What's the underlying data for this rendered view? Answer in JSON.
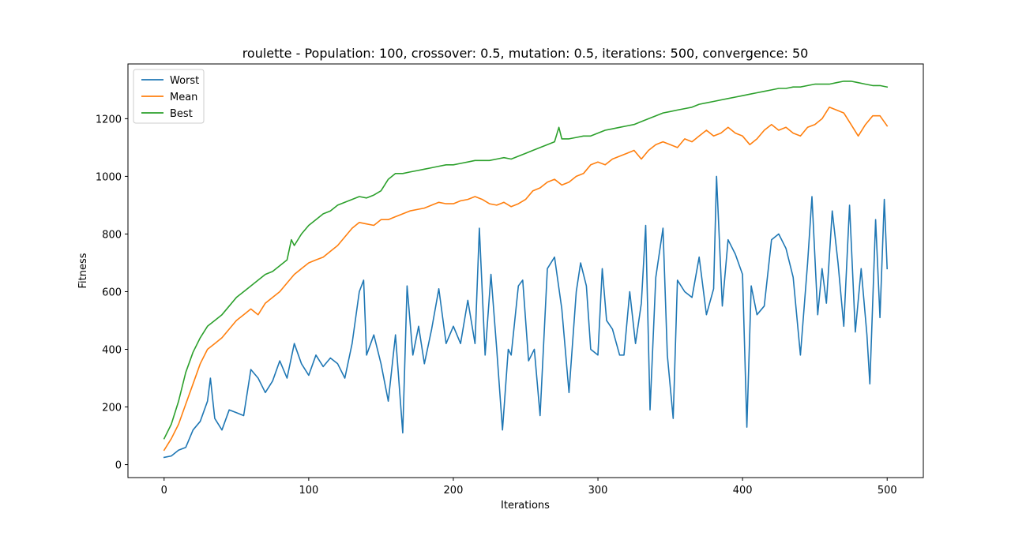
{
  "chart_data": {
    "type": "line",
    "title": "roulette - Population: 100, crossover: 0.5, mutation: 0.5, iterations: 500, convergence: 50",
    "xlabel": "Iterations",
    "ylabel": "Fitness",
    "xlim": [
      -25,
      525
    ],
    "ylim": [
      -45,
      1390
    ],
    "x_ticks": [
      0,
      100,
      200,
      300,
      400,
      500
    ],
    "y_ticks": [
      0,
      200,
      400,
      600,
      800,
      1000,
      1200
    ],
    "x_tick_labels": [
      "0",
      "100",
      "200",
      "300",
      "400",
      "500"
    ],
    "y_tick_labels": [
      "0",
      "200",
      "400",
      "600",
      "800",
      "1000",
      "1200"
    ],
    "grid": false,
    "legend_position": "top-left",
    "series": [
      {
        "name": "Worst",
        "color": "#1f77b4",
        "points": [
          [
            0,
            25
          ],
          [
            5,
            30
          ],
          [
            10,
            50
          ],
          [
            15,
            60
          ],
          [
            20,
            120
          ],
          [
            25,
            150
          ],
          [
            30,
            220
          ],
          [
            32,
            300
          ],
          [
            35,
            160
          ],
          [
            40,
            120
          ],
          [
            45,
            190
          ],
          [
            50,
            180
          ],
          [
            55,
            170
          ],
          [
            60,
            330
          ],
          [
            65,
            300
          ],
          [
            70,
            250
          ],
          [
            75,
            290
          ],
          [
            80,
            360
          ],
          [
            85,
            300
          ],
          [
            90,
            420
          ],
          [
            95,
            350
          ],
          [
            100,
            310
          ],
          [
            105,
            380
          ],
          [
            110,
            340
          ],
          [
            115,
            370
          ],
          [
            120,
            350
          ],
          [
            125,
            300
          ],
          [
            130,
            420
          ],
          [
            135,
            600
          ],
          [
            138,
            640
          ],
          [
            140,
            380
          ],
          [
            145,
            450
          ],
          [
            150,
            350
          ],
          [
            155,
            220
          ],
          [
            160,
            450
          ],
          [
            165,
            110
          ],
          [
            168,
            620
          ],
          [
            172,
            380
          ],
          [
            176,
            480
          ],
          [
            180,
            350
          ],
          [
            185,
            470
          ],
          [
            190,
            610
          ],
          [
            195,
            420
          ],
          [
            200,
            480
          ],
          [
            205,
            420
          ],
          [
            210,
            570
          ],
          [
            215,
            420
          ],
          [
            218,
            820
          ],
          [
            222,
            380
          ],
          [
            226,
            660
          ],
          [
            230,
            400
          ],
          [
            234,
            120
          ],
          [
            238,
            400
          ],
          [
            240,
            380
          ],
          [
            245,
            620
          ],
          [
            248,
            640
          ],
          [
            252,
            360
          ],
          [
            256,
            400
          ],
          [
            260,
            170
          ],
          [
            265,
            680
          ],
          [
            270,
            720
          ],
          [
            275,
            540
          ],
          [
            280,
            250
          ],
          [
            285,
            600
          ],
          [
            288,
            700
          ],
          [
            292,
            620
          ],
          [
            295,
            400
          ],
          [
            300,
            380
          ],
          [
            303,
            680
          ],
          [
            306,
            500
          ],
          [
            310,
            470
          ],
          [
            315,
            380
          ],
          [
            318,
            380
          ],
          [
            322,
            600
          ],
          [
            326,
            420
          ],
          [
            330,
            560
          ],
          [
            333,
            830
          ],
          [
            336,
            190
          ],
          [
            340,
            650
          ],
          [
            345,
            820
          ],
          [
            348,
            380
          ],
          [
            352,
            160
          ],
          [
            355,
            640
          ],
          [
            360,
            600
          ],
          [
            365,
            580
          ],
          [
            370,
            720
          ],
          [
            375,
            520
          ],
          [
            380,
            610
          ],
          [
            382,
            1000
          ],
          [
            386,
            550
          ],
          [
            390,
            780
          ],
          [
            395,
            730
          ],
          [
            400,
            660
          ],
          [
            403,
            130
          ],
          [
            406,
            620
          ],
          [
            410,
            520
          ],
          [
            415,
            550
          ],
          [
            420,
            780
          ],
          [
            425,
            800
          ],
          [
            430,
            750
          ],
          [
            435,
            650
          ],
          [
            440,
            380
          ],
          [
            445,
            700
          ],
          [
            448,
            930
          ],
          [
            452,
            520
          ],
          [
            455,
            680
          ],
          [
            458,
            560
          ],
          [
            462,
            880
          ],
          [
            466,
            700
          ],
          [
            470,
            480
          ],
          [
            474,
            900
          ],
          [
            478,
            460
          ],
          [
            482,
            680
          ],
          [
            486,
            450
          ],
          [
            488,
            280
          ],
          [
            492,
            850
          ],
          [
            495,
            510
          ],
          [
            498,
            920
          ],
          [
            500,
            680
          ]
        ]
      },
      {
        "name": "Mean",
        "color": "#ff7f0e",
        "points": [
          [
            0,
            50
          ],
          [
            5,
            90
          ],
          [
            10,
            140
          ],
          [
            15,
            210
          ],
          [
            20,
            280
          ],
          [
            25,
            350
          ],
          [
            30,
            400
          ],
          [
            35,
            420
          ],
          [
            40,
            440
          ],
          [
            45,
            470
          ],
          [
            50,
            500
          ],
          [
            55,
            520
          ],
          [
            60,
            540
          ],
          [
            65,
            520
          ],
          [
            70,
            560
          ],
          [
            75,
            580
          ],
          [
            80,
            600
          ],
          [
            85,
            630
          ],
          [
            90,
            660
          ],
          [
            95,
            680
          ],
          [
            100,
            700
          ],
          [
            105,
            710
          ],
          [
            110,
            720
          ],
          [
            115,
            740
          ],
          [
            120,
            760
          ],
          [
            125,
            790
          ],
          [
            130,
            820
          ],
          [
            135,
            840
          ],
          [
            140,
            835
          ],
          [
            145,
            830
          ],
          [
            150,
            850
          ],
          [
            155,
            850
          ],
          [
            160,
            860
          ],
          [
            165,
            870
          ],
          [
            170,
            880
          ],
          [
            175,
            885
          ],
          [
            180,
            890
          ],
          [
            185,
            900
          ],
          [
            190,
            910
          ],
          [
            195,
            905
          ],
          [
            200,
            905
          ],
          [
            205,
            915
          ],
          [
            210,
            920
          ],
          [
            215,
            930
          ],
          [
            220,
            920
          ],
          [
            225,
            905
          ],
          [
            230,
            900
          ],
          [
            235,
            910
          ],
          [
            240,
            895
          ],
          [
            245,
            905
          ],
          [
            250,
            920
          ],
          [
            255,
            950
          ],
          [
            260,
            960
          ],
          [
            265,
            980
          ],
          [
            270,
            990
          ],
          [
            275,
            970
          ],
          [
            280,
            980
          ],
          [
            285,
            1000
          ],
          [
            290,
            1010
          ],
          [
            295,
            1040
          ],
          [
            300,
            1050
          ],
          [
            305,
            1040
          ],
          [
            310,
            1060
          ],
          [
            315,
            1070
          ],
          [
            320,
            1080
          ],
          [
            325,
            1090
          ],
          [
            330,
            1060
          ],
          [
            335,
            1090
          ],
          [
            340,
            1110
          ],
          [
            345,
            1120
          ],
          [
            350,
            1110
          ],
          [
            355,
            1100
          ],
          [
            360,
            1130
          ],
          [
            365,
            1120
          ],
          [
            370,
            1140
          ],
          [
            375,
            1160
          ],
          [
            380,
            1140
          ],
          [
            385,
            1150
          ],
          [
            390,
            1170
          ],
          [
            395,
            1150
          ],
          [
            400,
            1140
          ],
          [
            405,
            1110
          ],
          [
            410,
            1130
          ],
          [
            415,
            1160
          ],
          [
            420,
            1180
          ],
          [
            425,
            1160
          ],
          [
            430,
            1170
          ],
          [
            435,
            1150
          ],
          [
            440,
            1140
          ],
          [
            445,
            1170
          ],
          [
            450,
            1180
          ],
          [
            455,
            1200
          ],
          [
            460,
            1240
          ],
          [
            465,
            1230
          ],
          [
            470,
            1220
          ],
          [
            475,
            1180
          ],
          [
            480,
            1140
          ],
          [
            485,
            1180
          ],
          [
            490,
            1210
          ],
          [
            495,
            1210
          ],
          [
            500,
            1175
          ]
        ]
      },
      {
        "name": "Best",
        "color": "#2ca02c",
        "points": [
          [
            0,
            90
          ],
          [
            5,
            140
          ],
          [
            10,
            220
          ],
          [
            15,
            320
          ],
          [
            20,
            390
          ],
          [
            25,
            440
          ],
          [
            30,
            480
          ],
          [
            35,
            500
          ],
          [
            40,
            520
          ],
          [
            45,
            550
          ],
          [
            50,
            580
          ],
          [
            55,
            600
          ],
          [
            60,
            620
          ],
          [
            65,
            640
          ],
          [
            70,
            660
          ],
          [
            75,
            670
          ],
          [
            80,
            690
          ],
          [
            85,
            710
          ],
          [
            88,
            780
          ],
          [
            90,
            760
          ],
          [
            95,
            800
          ],
          [
            100,
            830
          ],
          [
            105,
            850
          ],
          [
            110,
            870
          ],
          [
            115,
            880
          ],
          [
            120,
            900
          ],
          [
            125,
            910
          ],
          [
            130,
            920
          ],
          [
            135,
            930
          ],
          [
            140,
            925
          ],
          [
            145,
            935
          ],
          [
            150,
            950
          ],
          [
            155,
            990
          ],
          [
            160,
            1010
          ],
          [
            165,
            1010
          ],
          [
            170,
            1015
          ],
          [
            175,
            1020
          ],
          [
            180,
            1025
          ],
          [
            185,
            1030
          ],
          [
            190,
            1035
          ],
          [
            195,
            1040
          ],
          [
            200,
            1040
          ],
          [
            205,
            1045
          ],
          [
            210,
            1050
          ],
          [
            215,
            1055
          ],
          [
            220,
            1055
          ],
          [
            225,
            1055
          ],
          [
            230,
            1060
          ],
          [
            235,
            1065
          ],
          [
            240,
            1060
          ],
          [
            245,
            1070
          ],
          [
            250,
            1080
          ],
          [
            255,
            1090
          ],
          [
            260,
            1100
          ],
          [
            265,
            1110
          ],
          [
            270,
            1120
          ],
          [
            273,
            1170
          ],
          [
            275,
            1130
          ],
          [
            280,
            1130
          ],
          [
            285,
            1135
          ],
          [
            290,
            1140
          ],
          [
            295,
            1140
          ],
          [
            300,
            1150
          ],
          [
            305,
            1160
          ],
          [
            310,
            1165
          ],
          [
            315,
            1170
          ],
          [
            320,
            1175
          ],
          [
            325,
            1180
          ],
          [
            330,
            1190
          ],
          [
            335,
            1200
          ],
          [
            340,
            1210
          ],
          [
            345,
            1220
          ],
          [
            350,
            1225
          ],
          [
            355,
            1230
          ],
          [
            360,
            1235
          ],
          [
            365,
            1240
          ],
          [
            370,
            1250
          ],
          [
            375,
            1255
          ],
          [
            380,
            1260
          ],
          [
            385,
            1265
          ],
          [
            390,
            1270
          ],
          [
            395,
            1275
          ],
          [
            400,
            1280
          ],
          [
            405,
            1285
          ],
          [
            410,
            1290
          ],
          [
            415,
            1295
          ],
          [
            420,
            1300
          ],
          [
            425,
            1305
          ],
          [
            430,
            1305
          ],
          [
            435,
            1310
          ],
          [
            440,
            1310
          ],
          [
            445,
            1315
          ],
          [
            450,
            1320
          ],
          [
            455,
            1320
          ],
          [
            460,
            1320
          ],
          [
            465,
            1325
          ],
          [
            470,
            1330
          ],
          [
            475,
            1330
          ],
          [
            480,
            1325
          ],
          [
            485,
            1320
          ],
          [
            490,
            1315
          ],
          [
            495,
            1315
          ],
          [
            500,
            1310
          ]
        ]
      }
    ]
  }
}
